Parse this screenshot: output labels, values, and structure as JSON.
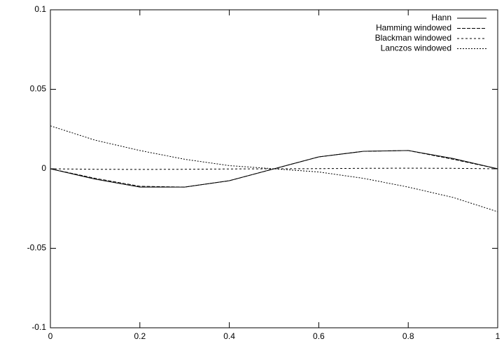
{
  "chart_data": {
    "type": "line",
    "x": [
      0,
      0.1,
      0.2,
      0.3,
      0.4,
      0.5,
      0.6,
      0.7,
      0.8,
      0.9,
      1
    ],
    "series": [
      {
        "name": "Hann",
        "color": "#000000",
        "dash": "none",
        "values": [
          0,
          -0.0065,
          -0.0115,
          -0.0115,
          -0.0075,
          0,
          0.0075,
          0.011,
          0.0115,
          0.0065,
          0
        ]
      },
      {
        "name": "Hamming windowed",
        "color": "#000000",
        "dash": "5,2",
        "values": [
          0,
          -0.006,
          -0.011,
          -0.0115,
          -0.0075,
          0,
          0.0075,
          0.011,
          0.0115,
          0.006,
          0
        ]
      },
      {
        "name": "Blackman windowed",
        "color": "#000000",
        "dash": "3,3",
        "values": [
          0,
          -0.0003,
          -0.0004,
          -0.0003,
          -0.0001,
          0,
          0.0001,
          0.0003,
          0.0004,
          0.0003,
          0
        ]
      },
      {
        "name": "Lanczos windowed",
        "color": "#000000",
        "dash": "2,2",
        "values": [
          0.027,
          0.018,
          0.0115,
          0.006,
          0.002,
          0,
          -0.002,
          -0.006,
          -0.0115,
          -0.018,
          -0.027
        ]
      }
    ],
    "xlim": [
      0,
      1
    ],
    "xticks": [
      0,
      0.2,
      0.4,
      0.6,
      0.8,
      1
    ],
    "ylim": [
      -0.1,
      0.1
    ],
    "yticks": [
      -0.1,
      -0.05,
      0,
      0.05,
      0.1
    ],
    "grid": false,
    "legend": "top-right"
  }
}
